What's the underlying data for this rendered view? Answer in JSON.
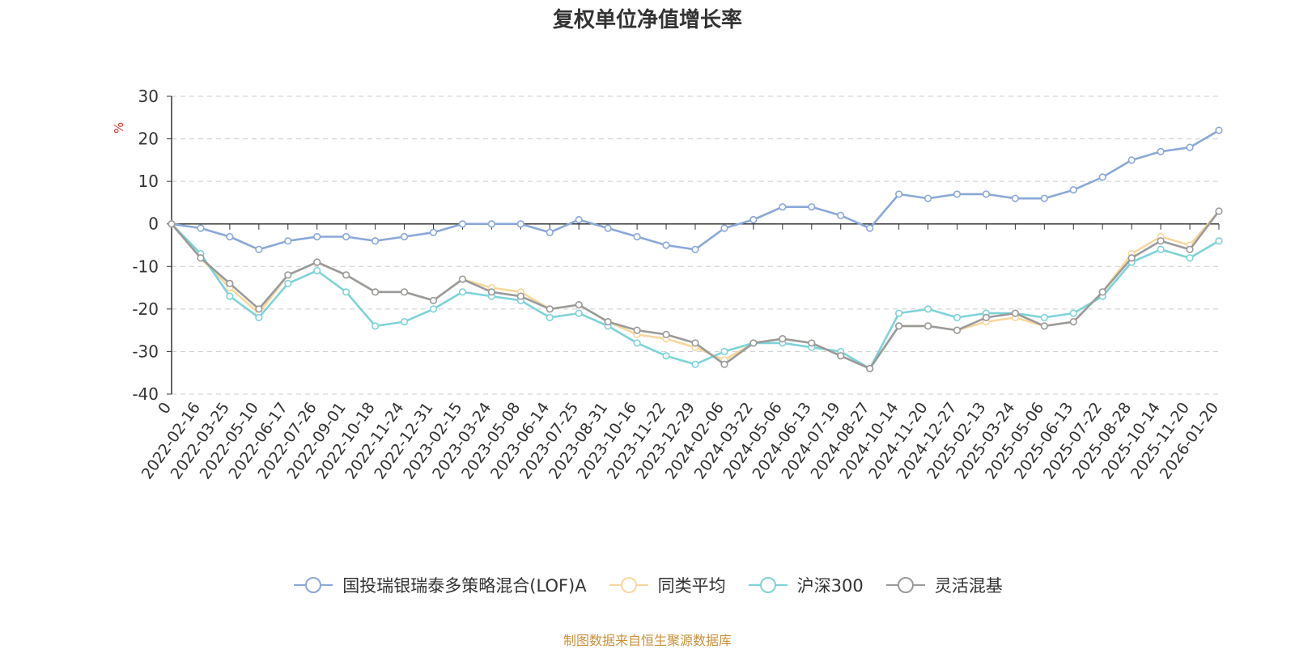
{
  "title": "复权单位净值增长率",
  "source_note": "制图数据来自恒生聚源数据库",
  "chart_data": {
    "type": "line",
    "title": "复权单位净值增长率",
    "ylabel": "%",
    "ylim": [
      -40,
      30
    ],
    "yticks": [
      30,
      20,
      10,
      0,
      -10,
      -20,
      -30,
      -40
    ],
    "grid": true,
    "legend_position": "bottom-center",
    "categories": [
      "0",
      "2022-02-16",
      "2022-03-25",
      "2022-05-10",
      "2022-06-17",
      "2022-07-26",
      "2022-09-01",
      "2022-10-18",
      "2022-11-24",
      "2022-12-31",
      "2023-02-15",
      "2023-03-24",
      "2023-05-08",
      "2023-06-14",
      "2023-07-25",
      "2023-08-31",
      "2023-10-16",
      "2023-11-22",
      "2023-12-29",
      "2024-02-06",
      "2024-03-22",
      "2024-05-06",
      "2024-06-13",
      "2024-07-19",
      "2024-08-27",
      "2024-10-14",
      "2024-11-20",
      "2024-12-27",
      "2025-02-13",
      "2025-03-24",
      "2025-05-06",
      "2025-06-13",
      "2025-07-22",
      "2025-08-28",
      "2025-10-14",
      "2025-11-20",
      "2026-01-20"
    ],
    "series": [
      {
        "name": "国投瑞银瑞泰多策略混合(LOF)A",
        "color": "#8aa8d8",
        "values": [
          0,
          -1,
          -3,
          -6,
          -4,
          -3,
          -3,
          -4,
          -3,
          -2,
          0,
          0,
          0,
          -2,
          1,
          -1,
          -3,
          -5,
          -6,
          -1,
          1,
          4,
          4,
          2,
          -1,
          7,
          6,
          7,
          7,
          6,
          6,
          8,
          11,
          15,
          17,
          18,
          22
        ]
      },
      {
        "name": "同类平均",
        "color": "#f8d79c",
        "values": [
          0,
          -8,
          -15,
          -21,
          -12,
          -9,
          -12,
          -16,
          -16,
          -18,
          -13,
          -15,
          -16,
          -20,
          -19,
          -23,
          -26,
          -27,
          -29,
          -32,
          -28,
          -27,
          -28,
          -31,
          -34,
          -24,
          -24,
          -25,
          -23,
          -22,
          -24,
          -23,
          -16,
          -7,
          -3,
          -5,
          3
        ]
      },
      {
        "name": "沪深300",
        "color": "#7dd3d8",
        "values": [
          0,
          -7,
          -17,
          -22,
          -14,
          -11,
          -16,
          -24,
          -23,
          -20,
          -16,
          -17,
          -18,
          -22,
          -21,
          -24,
          -28,
          -31,
          -33,
          -30,
          -28,
          -28,
          -29,
          -30,
          -34,
          -21,
          -20,
          -22,
          -21,
          -21,
          -22,
          -21,
          -17,
          -9,
          -6,
          -8,
          -4
        ]
      },
      {
        "name": "灵活混基",
        "color": "#9a9a9a",
        "values": [
          0,
          -8,
          -14,
          -20,
          -12,
          -9,
          -12,
          -16,
          -16,
          -18,
          -13,
          -16,
          -17,
          -20,
          -19,
          -23,
          -25,
          -26,
          -28,
          -33,
          -28,
          -27,
          -28,
          -31,
          -34,
          -24,
          -24,
          -25,
          -22,
          -21,
          -24,
          -23,
          -16,
          -8,
          -4,
          -6,
          3
        ]
      }
    ]
  }
}
